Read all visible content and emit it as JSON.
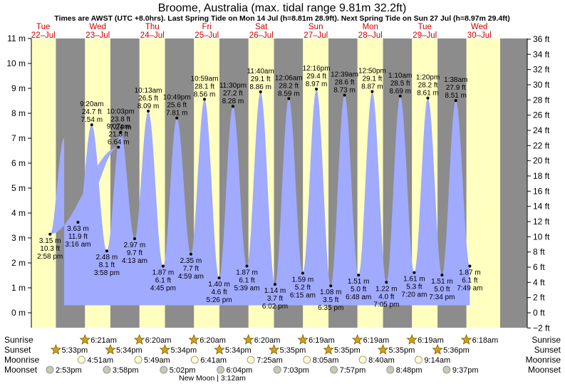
{
  "header": {
    "title": "Broome, Australia (max. tidal range 9.81m 32.2ft)",
    "subtitle": "Times are AWST (UTC +8.0hrs). Last Spring Tide on Mon 14 Jul (h=8.81m 28.9ft). Next Spring Tide on Sun 27 Jul (h=8.97m 29.4ft)"
  },
  "days": [
    {
      "dow": "Tue",
      "date": "22–Jul"
    },
    {
      "dow": "Wed",
      "date": "23–Jul"
    },
    {
      "dow": "Thu",
      "date": "24–Jul"
    },
    {
      "dow": "Fri",
      "date": "25–Jul"
    },
    {
      "dow": "Sat",
      "date": "26–Jul"
    },
    {
      "dow": "Sun",
      "date": "27–Jul"
    },
    {
      "dow": "Mon",
      "date": "28–Jul"
    },
    {
      "dow": "Tue",
      "date": "29–Jul"
    },
    {
      "dow": "Wed",
      "date": "30–Jul"
    }
  ],
  "rows": {
    "sunrise": {
      "label": "Sunrise",
      "times": [
        "6:21am",
        "6:20am",
        "6:20am",
        "6:20am",
        "6:19am",
        "6:19am",
        "6:19am",
        "6:18am"
      ]
    },
    "sunset": {
      "label": "Sunset",
      "times": [
        "5:33pm",
        "5:34pm",
        "5:34pm",
        "5:34pm",
        "5:35pm",
        "5:35pm",
        "5:35pm",
        "5:36pm"
      ]
    },
    "moonrise": {
      "label": "Moonrise",
      "times": [
        "4:51am",
        "5:49am",
        "6:41am",
        "7:25am",
        "8:05am",
        "8:40am",
        "9:14am"
      ]
    },
    "moonset": {
      "label": "Moonset",
      "times": [
        "2:53pm",
        "3:58pm",
        "5:02pm",
        "6:04pm",
        "7:03pm",
        "7:57pm",
        "8:48pm",
        "9:37pm"
      ]
    }
  },
  "moon_note": "New Moon | 3:12am",
  "colors": {
    "water": "#a0aaff",
    "day": "#ffffc0",
    "night": "#8c8c8c",
    "dayText": "#cc0000"
  },
  "chart_data": {
    "type": "area",
    "title": "Broome, Australia (max. tidal range 9.81m 32.2ft)",
    "ylabel_left": "m",
    "ylabel_right": "ft",
    "ylim_m": [
      -0.6,
      11
    ],
    "y_ticks_m": [
      "0 m",
      "1 m",
      "2 m",
      "3 m",
      "4 m",
      "5 m",
      "6 m",
      "7 m",
      "8 m",
      "9 m",
      "10 m",
      "11 m"
    ],
    "y_ticks_ft": [
      "−2 ft",
      "0 ft",
      "2 ft",
      "4 ft",
      "6 ft",
      "8 ft",
      "10 ft",
      "12 ft",
      "14 ft",
      "16 ft",
      "18 ft",
      "20 ft",
      "22 ft",
      "24 ft",
      "26 ft",
      "28 ft",
      "30 ft",
      "32 ft",
      "34 ft",
      "36 ft"
    ],
    "start_height_m": 7.0,
    "tides": [
      {
        "type": "low",
        "day": 0,
        "time": "2:58 pm",
        "m": 3.15,
        "ft": "10.3 ft",
        "m_label": "3.15 m"
      },
      {
        "type": "high",
        "day": 1,
        "time": "9:07 pm",
        "m": 6.64,
        "ft": "21.8 ft",
        "m_label": "6.64 m"
      },
      {
        "type": "low",
        "day": 1,
        "time": "3:16 am",
        "m": 3.63,
        "ft": "11.9 ft",
        "m_label": "3.63 m"
      },
      {
        "type": "high",
        "day": 1,
        "time": "9:20 am",
        "m": 7.54,
        "ft": "24.7 ft",
        "m_label": "7.54 m"
      },
      {
        "type": "low",
        "day": 1,
        "time": "3:58 pm",
        "m": 2.48,
        "ft": "8.1 ft",
        "m_label": "2.48 m"
      },
      {
        "type": "high",
        "day": 1,
        "time": "10:03 pm",
        "m": 7.24,
        "ft": "23.8 ft",
        "m_label": "7.24 m"
      },
      {
        "type": "low",
        "day": 2,
        "time": "4:13 am",
        "m": 2.97,
        "ft": "9.7 ft",
        "m_label": "2.97 m"
      },
      {
        "type": "high",
        "day": 2,
        "time": "10:13 am",
        "m": 8.09,
        "ft": "26.5 ft",
        "m_label": "8.09 m"
      },
      {
        "type": "low",
        "day": 2,
        "time": "4:45 pm",
        "m": 1.87,
        "ft": "6.1 ft",
        "m_label": "1.87 m"
      },
      {
        "type": "high",
        "day": 2,
        "time": "10:49 pm",
        "m": 7.81,
        "ft": "25.6 ft",
        "m_label": "7.81 m"
      },
      {
        "type": "low",
        "day": 3,
        "time": "4:59 am",
        "m": 2.35,
        "ft": "7.7 ft",
        "m_label": "2.35 m"
      },
      {
        "type": "high",
        "day": 3,
        "time": "10:59 am",
        "m": 8.56,
        "ft": "28.1 ft",
        "m_label": "8.56 m"
      },
      {
        "type": "low",
        "day": 3,
        "time": "5:26 pm",
        "m": 1.4,
        "ft": "4.6 ft",
        "m_label": "1.40 m"
      },
      {
        "type": "high",
        "day": 3,
        "time": "11:30 pm",
        "m": 8.28,
        "ft": "27.2 ft",
        "m_label": "8.28 m"
      },
      {
        "type": "low",
        "day": 4,
        "time": "5:39 am",
        "m": 1.87,
        "ft": "6.1 ft",
        "m_label": "1.87 m"
      },
      {
        "type": "high",
        "day": 4,
        "time": "11:40 am",
        "m": 8.86,
        "ft": "29.1 ft",
        "m_label": "8.86 m"
      },
      {
        "type": "low",
        "day": 4,
        "time": "6:02 pm",
        "m": 1.14,
        "ft": "3.7 ft",
        "m_label": "1.14 m"
      },
      {
        "type": "high",
        "day": 5,
        "time": "12:06 am",
        "m": 8.59,
        "ft": "28.2 ft",
        "m_label": "8.59 m"
      },
      {
        "type": "low",
        "day": 5,
        "time": "6:15 am",
        "m": 1.59,
        "ft": "5.2 ft",
        "m_label": "1.59 m"
      },
      {
        "type": "high",
        "day": 5,
        "time": "12:16 pm",
        "m": 8.97,
        "ft": "29.4 ft",
        "m_label": "8.97 m"
      },
      {
        "type": "low",
        "day": 5,
        "time": "6:35 pm",
        "m": 1.08,
        "ft": "3.5 ft",
        "m_label": "1.08 m"
      },
      {
        "type": "high",
        "day": 6,
        "time": "12:39 am",
        "m": 8.73,
        "ft": "28.6 ft",
        "m_label": "8.73 m"
      },
      {
        "type": "low",
        "day": 6,
        "time": "6:48 am",
        "m": 1.51,
        "ft": "5.0 ft",
        "m_label": "1.51 m"
      },
      {
        "type": "high",
        "day": 6,
        "time": "12:50 pm",
        "m": 8.87,
        "ft": "29.1 ft",
        "m_label": "8.87 m"
      },
      {
        "type": "low",
        "day": 6,
        "time": "7:05 pm",
        "m": 1.22,
        "ft": "4.0 ft",
        "m_label": "1.22 m"
      },
      {
        "type": "high",
        "day": 7,
        "time": "1:10 am",
        "m": 8.69,
        "ft": "28.5 ft",
        "m_label": "8.69 m"
      },
      {
        "type": "low",
        "day": 7,
        "time": "7:20 am",
        "m": 1.61,
        "ft": "5.3 ft",
        "m_label": "1.61 m"
      },
      {
        "type": "high",
        "day": 7,
        "time": "1:20 pm",
        "m": 8.61,
        "ft": "28.2 ft",
        "m_label": "8.61 m"
      },
      {
        "type": "low",
        "day": 7,
        "time": "7:34 pm",
        "m": 1.51,
        "ft": "5.0 ft",
        "m_label": "1.51 m"
      },
      {
        "type": "high",
        "day": 8,
        "time": "1:38 am",
        "m": 8.51,
        "ft": "27.9 ft",
        "m_label": "8.51 m"
      },
      {
        "type": "low",
        "day": 8,
        "time": "7:49 am",
        "m": 1.87,
        "ft": "6.1 ft",
        "m_label": "1.87 m"
      }
    ]
  }
}
